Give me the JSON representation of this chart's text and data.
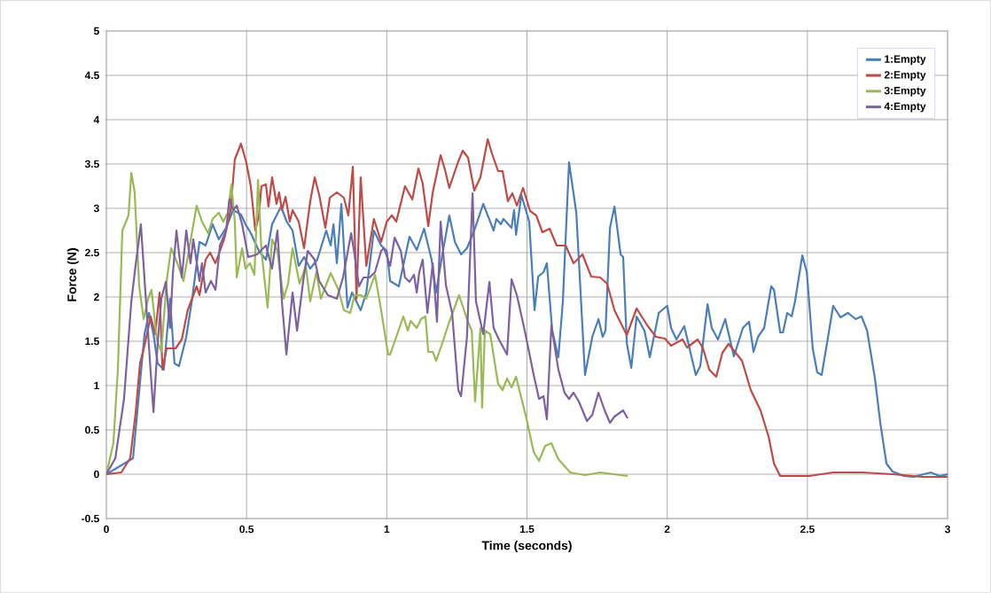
{
  "chart_data": {
    "type": "line",
    "xlabel": "Time (seconds)",
    "ylabel": "Force (N)",
    "xlim": [
      0,
      3
    ],
    "ylim": [
      -0.5,
      5
    ],
    "xticks": [
      0,
      0.5,
      1,
      1.5,
      2,
      2.5,
      3
    ],
    "yticks": [
      -0.5,
      0,
      0.5,
      1,
      1.5,
      2,
      2.5,
      3,
      3.5,
      4,
      4.5,
      5
    ],
    "grid": true,
    "legend": "top right",
    "series": [
      {
        "name": "1:Empty",
        "color": "#4a7ebb",
        "x": [
          0,
          0.095,
          0.136,
          0.152,
          0.168,
          0.183,
          0.205,
          0.227,
          0.243,
          0.259,
          0.285,
          0.306,
          0.332,
          0.354,
          0.379,
          0.401,
          0.427,
          0.452,
          0.48,
          0.496,
          0.515,
          0.544,
          0.569,
          0.591,
          0.623,
          0.643,
          0.664,
          0.686,
          0.705,
          0.727,
          0.752,
          0.784,
          0.8,
          0.81,
          0.822,
          0.838,
          0.86,
          0.876,
          0.907,
          0.927,
          0.954,
          0.98,
          1.0,
          1.012,
          1.043,
          1.081,
          1.107,
          1.133,
          1.16,
          1.176,
          1.195,
          1.223,
          1.243,
          1.265,
          1.286,
          1.312,
          1.344,
          1.381,
          1.391,
          1.407,
          1.416,
          1.445,
          1.454,
          1.461,
          1.48,
          1.508,
          1.527,
          1.54,
          1.559,
          1.571,
          1.59,
          1.612,
          1.628,
          1.65,
          1.676,
          1.707,
          1.733,
          1.755,
          1.77,
          1.78,
          1.796,
          1.812,
          1.834,
          1.843,
          1.856,
          1.872,
          1.891,
          1.919,
          1.938,
          1.97,
          2.0,
          2.014,
          2.033,
          2.061,
          2.102,
          2.118,
          2.144,
          2.159,
          2.181,
          2.207,
          2.238,
          2.27,
          2.292,
          2.308,
          2.324,
          2.346,
          2.371,
          2.381,
          2.403,
          2.413,
          2.428,
          2.444,
          2.456,
          2.482,
          2.498,
          2.519,
          2.535,
          2.551,
          2.567,
          2.592,
          2.618,
          2.645,
          2.672,
          2.693,
          2.713,
          2.741,
          2.76,
          2.782,
          2.804,
          2.845,
          2.877,
          2.94,
          2.972,
          3.0
        ],
        "values": [
          0,
          0.18,
          1.58,
          1.82,
          1.58,
          1.25,
          1.18,
          1.98,
          1.25,
          1.22,
          1.55,
          1.98,
          2.62,
          2.58,
          2.82,
          2.65,
          2.78,
          2.98,
          2.93,
          2.82,
          2.72,
          2.52,
          2.42,
          2.82,
          3.02,
          2.85,
          2.75,
          2.35,
          2.45,
          2.32,
          2.42,
          2.75,
          2.58,
          2.82,
          2.38,
          3.05,
          1.88,
          2.05,
          1.85,
          2.05,
          2.75,
          2.58,
          2.52,
          2.18,
          2.12,
          2.68,
          2.53,
          2.77,
          2.42,
          2.05,
          2.42,
          2.92,
          2.62,
          2.48,
          2.55,
          2.75,
          3.05,
          2.75,
          2.88,
          2.82,
          2.88,
          2.78,
          2.98,
          2.7,
          3.15,
          2.85,
          1.85,
          2.23,
          2.28,
          2.38,
          1.62,
          1.32,
          1.95,
          3.52,
          2.95,
          1.12,
          1.55,
          1.75,
          1.55,
          1.62,
          2.78,
          3.02,
          2.48,
          2.45,
          1.48,
          1.2,
          1.78,
          1.62,
          1.32,
          1.82,
          1.9,
          1.65,
          1.52,
          1.67,
          1.12,
          1.22,
          1.92,
          1.65,
          1.52,
          1.75,
          1.33,
          1.65,
          1.72,
          1.38,
          1.55,
          1.65,
          2.12,
          2.08,
          1.6,
          1.6,
          1.82,
          1.78,
          1.95,
          2.47,
          2.28,
          1.42,
          1.15,
          1.12,
          1.42,
          1.9,
          1.77,
          1.82,
          1.75,
          1.78,
          1.62,
          1.08,
          0.58,
          0.12,
          0.03,
          -0.02,
          -0.03,
          0.02,
          -0.02,
          0
        ]
      },
      {
        "name": "2:Empty",
        "color": "#be4b48",
        "x": [
          0,
          0.053,
          0.085,
          0.104,
          0.12,
          0.136,
          0.158,
          0.174,
          0.19,
          0.2,
          0.215,
          0.247,
          0.269,
          0.29,
          0.322,
          0.332,
          0.354,
          0.37,
          0.389,
          0.42,
          0.443,
          0.458,
          0.48,
          0.499,
          0.515,
          0.531,
          0.544,
          0.553,
          0.569,
          0.578,
          0.591,
          0.607,
          0.616,
          0.626,
          0.639,
          0.654,
          0.664,
          0.686,
          0.705,
          0.727,
          0.743,
          0.759,
          0.781,
          0.797,
          0.822,
          0.847,
          0.863,
          0.879,
          0.892,
          0.907,
          0.927,
          0.954,
          0.98,
          1.0,
          1.018,
          1.034,
          1.065,
          1.091,
          1.113,
          1.128,
          1.148,
          1.164,
          1.192,
          1.208,
          1.223,
          1.255,
          1.271,
          1.29,
          1.312,
          1.334,
          1.36,
          1.375,
          1.397,
          1.413,
          1.432,
          1.448,
          1.464,
          1.486,
          1.511,
          1.533,
          1.555,
          1.581,
          1.606,
          1.638,
          1.666,
          1.698,
          1.729,
          1.761,
          1.786,
          1.812,
          1.856,
          1.891,
          1.929,
          1.96,
          1.992,
          2.014,
          2.055,
          2.071,
          2.109,
          2.128,
          2.15,
          2.175,
          2.197,
          2.219,
          2.267,
          2.298,
          2.333,
          2.362,
          2.381,
          2.403,
          2.456,
          2.507,
          2.592,
          2.697,
          2.804,
          2.909,
          3.0
        ],
        "values": [
          0,
          0.02,
          0.18,
          0.68,
          1.25,
          1.45,
          1.78,
          1.58,
          2.05,
          1.18,
          1.42,
          1.42,
          1.52,
          1.85,
          2.12,
          2.02,
          2.42,
          2.5,
          2.38,
          2.65,
          2.98,
          3.55,
          3.73,
          3.52,
          3.25,
          2.75,
          2.92,
          3.25,
          3.27,
          3.02,
          3.35,
          3.05,
          3.18,
          2.98,
          3.13,
          2.85,
          2.98,
          2.85,
          2.55,
          3.08,
          3.35,
          3.15,
          2.78,
          3.12,
          3.18,
          3.12,
          2.92,
          3.47,
          1.98,
          3.35,
          2.35,
          2.88,
          2.62,
          2.85,
          2.92,
          2.85,
          3.25,
          3.1,
          3.45,
          3.28,
          2.8,
          3.18,
          3.6,
          3.43,
          3.23,
          3.53,
          3.65,
          3.57,
          3.2,
          3.35,
          3.78,
          3.62,
          3.42,
          3.42,
          3.08,
          3.17,
          3.03,
          3.23,
          2.97,
          2.92,
          2.73,
          2.77,
          2.58,
          2.58,
          2.38,
          2.48,
          2.23,
          2.22,
          2.15,
          1.85,
          1.57,
          1.87,
          1.68,
          1.55,
          1.53,
          1.45,
          1.52,
          1.43,
          1.52,
          1.42,
          1.18,
          1.1,
          1.37,
          1.47,
          1.28,
          0.95,
          0.72,
          0.42,
          0.12,
          -0.02,
          -0.02,
          -0.02,
          0.02,
          0.02,
          0,
          -0.03,
          -0.03
        ]
      },
      {
        "name": "3:Empty",
        "color": "#98b954",
        "x": [
          0,
          0.025,
          0.041,
          0.057,
          0.07,
          0.079,
          0.089,
          0.101,
          0.117,
          0.133,
          0.149,
          0.161,
          0.18,
          0.196,
          0.215,
          0.231,
          0.253,
          0.275,
          0.294,
          0.322,
          0.341,
          0.363,
          0.379,
          0.401,
          0.417,
          0.433,
          0.446,
          0.458,
          0.465,
          0.484,
          0.496,
          0.512,
          0.528,
          0.541,
          0.553,
          0.575,
          0.591,
          0.61,
          0.632,
          0.648,
          0.664,
          0.689,
          0.711,
          0.727,
          0.749,
          0.765,
          0.8,
          0.828,
          0.847,
          0.87,
          0.885,
          0.907,
          0.927,
          0.958,
          0.98,
          1.005,
          1.012,
          1.034,
          1.059,
          1.075,
          1.085,
          1.107,
          1.122,
          1.138,
          1.148,
          1.164,
          1.176,
          1.195,
          1.223,
          1.258,
          1.286,
          1.303,
          1.315,
          1.334,
          1.34,
          1.35,
          1.369,
          1.397,
          1.413,
          1.429,
          1.445,
          1.461,
          1.495,
          1.524,
          1.543,
          1.565,
          1.587,
          1.612,
          1.654,
          1.707,
          1.761,
          1.859
        ],
        "values": [
          0,
          0.35,
          1.18,
          2.75,
          2.85,
          2.92,
          3.4,
          3.18,
          2.12,
          1.75,
          1.98,
          2.08,
          1.52,
          1.38,
          2.18,
          2.55,
          2.38,
          2.18,
          2.52,
          3.03,
          2.85,
          2.72,
          2.88,
          2.95,
          2.85,
          2.95,
          3.27,
          2.85,
          2.22,
          2.55,
          2.32,
          2.38,
          2.25,
          3.32,
          2.52,
          1.88,
          2.65,
          2.52,
          1.98,
          2.15,
          2.55,
          2.15,
          2.35,
          1.95,
          2.28,
          1.98,
          2.27,
          2.08,
          1.85,
          1.82,
          2.02,
          2.02,
          1.98,
          2.25,
          1.85,
          1.35,
          1.35,
          1.55,
          1.78,
          1.62,
          1.73,
          1.65,
          1.75,
          1.78,
          1.38,
          1.38,
          1.28,
          1.45,
          1.72,
          2.02,
          1.75,
          1.62,
          0.82,
          1.65,
          0.75,
          1.62,
          1.58,
          1.02,
          0.95,
          1.08,
          0.98,
          1.1,
          0.67,
          0.25,
          0.15,
          0.32,
          0.35,
          0.17,
          0.02,
          -0.01,
          0.02,
          -0.02
        ]
      },
      {
        "name": "4:Empty",
        "color": "#7d60a0",
        "x": [
          0,
          0.032,
          0.063,
          0.089,
          0.104,
          0.123,
          0.142,
          0.158,
          0.168,
          0.183,
          0.196,
          0.212,
          0.227,
          0.237,
          0.25,
          0.269,
          0.285,
          0.3,
          0.31,
          0.332,
          0.341,
          0.354,
          0.373,
          0.389,
          0.405,
          0.427,
          0.439,
          0.452,
          0.465,
          0.484,
          0.506,
          0.537,
          0.569,
          0.591,
          0.61,
          0.626,
          0.642,
          0.664,
          0.68,
          0.702,
          0.718,
          0.743,
          0.759,
          0.79,
          0.822,
          0.844,
          0.873,
          0.885,
          0.901,
          0.917,
          0.939,
          0.958,
          0.98,
          0.99,
          1.012,
          1.028,
          1.05,
          1.065,
          1.081,
          1.097,
          1.107,
          1.116,
          1.128,
          1.145,
          1.164,
          1.179,
          1.192,
          1.211,
          1.233,
          1.255,
          1.265,
          1.286,
          1.306,
          1.318,
          1.344,
          1.366,
          1.381,
          1.4,
          1.429,
          1.445,
          1.464,
          1.492,
          1.524,
          1.543,
          1.559,
          1.571,
          1.587,
          1.612,
          1.634,
          1.65,
          1.666,
          1.685,
          1.714,
          1.733,
          1.755,
          1.777,
          1.796,
          1.812,
          1.843,
          1.859
        ],
        "values": [
          0,
          0.18,
          0.85,
          1.95,
          2.35,
          2.82,
          1.92,
          1.15,
          0.7,
          1.48,
          1.98,
          2.17,
          1.65,
          2.25,
          2.75,
          2.22,
          2.75,
          2.38,
          2.65,
          2.18,
          2.38,
          2.05,
          2.18,
          2.08,
          2.58,
          2.75,
          3.1,
          2.98,
          3.03,
          2.82,
          2.45,
          2.48,
          2.58,
          2.32,
          2.75,
          1.95,
          1.35,
          2.05,
          1.62,
          2.18,
          2.52,
          2.42,
          2.18,
          2.02,
          1.98,
          2.22,
          2.72,
          2.48,
          2.12,
          2.22,
          2.22,
          2.28,
          2.52,
          2.55,
          2.35,
          2.67,
          2.52,
          2.22,
          2.17,
          2.25,
          2.05,
          2.28,
          2.42,
          1.82,
          2.38,
          1.72,
          2.85,
          2.13,
          1.82,
          0.95,
          0.88,
          1.55,
          3.17,
          1.95,
          1.58,
          2.17,
          1.65,
          1.52,
          1.35,
          2.2,
          2.02,
          1.62,
          1.12,
          0.85,
          0.88,
          0.62,
          1.68,
          1.18,
          0.92,
          0.85,
          0.92,
          0.82,
          0.6,
          0.67,
          0.92,
          0.72,
          0.58,
          0.65,
          0.72,
          0.63
        ]
      }
    ]
  }
}
